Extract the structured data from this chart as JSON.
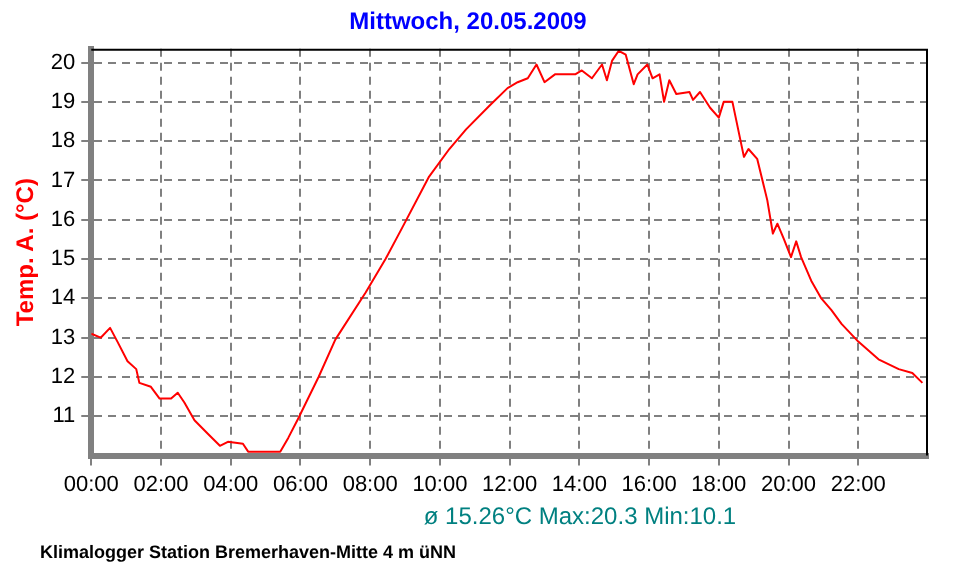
{
  "chart_data": {
    "type": "line",
    "title": "Mittwoch, 20.05.2009",
    "ylabel": "Temp. A. (°C)",
    "annotations": [
      "ø 15.26°C  Max:20.3  Min:10.1",
      "Klimalogger Station Bremerhaven-Mitte 4 m üNN"
    ],
    "xlim": [
      0,
      24
    ],
    "ylim": [
      10,
      20.35
    ],
    "xticks": [
      {
        "value": 0,
        "label": "00:00"
      },
      {
        "value": 2,
        "label": "02:00"
      },
      {
        "value": 4,
        "label": "04:00"
      },
      {
        "value": 6,
        "label": "06:00"
      },
      {
        "value": 8,
        "label": "08:00"
      },
      {
        "value": 10,
        "label": "10:00"
      },
      {
        "value": 12,
        "label": "12:00"
      },
      {
        "value": 14,
        "label": "14:00"
      },
      {
        "value": 16,
        "label": "16:00"
      },
      {
        "value": 18,
        "label": "18:00"
      },
      {
        "value": 20,
        "label": "20:00"
      },
      {
        "value": 22,
        "label": "22:00"
      }
    ],
    "yticks": [
      11,
      12,
      13,
      14,
      15,
      16,
      17,
      18,
      19,
      20
    ],
    "grid": true,
    "legend": false,
    "marker": "none",
    "line_style": "solid",
    "series": [
      {
        "color": "#ff0000",
        "x": [
          0,
          0.27,
          0.54,
          0.75,
          1.04,
          1.29,
          1.38,
          1.71,
          1.96,
          2.29,
          2.48,
          2.67,
          2.96,
          3.35,
          3.69,
          3.92,
          4.35,
          4.5,
          5.42,
          5.65,
          5.94,
          6.52,
          7.0,
          7.87,
          8.44,
          8.92,
          9.69,
          10.27,
          10.75,
          11.42,
          11.94,
          12.23,
          12.52,
          12.77,
          13.0,
          13.3,
          13.88,
          14.07,
          14.36,
          14.65,
          14.79,
          14.94,
          15.13,
          15.33,
          15.56,
          15.67,
          15.95,
          16.1,
          16.3,
          16.43,
          16.58,
          16.78,
          17.16,
          17.26,
          17.46,
          17.75,
          18.0,
          18.14,
          18.39,
          18.72,
          18.85,
          19.1,
          19.39,
          19.55,
          19.68,
          19.87,
          20.07,
          20.22,
          20.36,
          20.65,
          20.94,
          21.23,
          21.52,
          22.0,
          22.58,
          23.16,
          23.55,
          23.84
        ],
        "values": [
          13.1,
          13.0,
          13.25,
          12.9,
          12.4,
          12.2,
          11.85,
          11.75,
          11.45,
          11.45,
          11.6,
          11.35,
          10.9,
          10.55,
          10.25,
          10.35,
          10.3,
          10.1,
          10.1,
          10.45,
          10.95,
          12.0,
          12.95,
          14.15,
          15.0,
          15.8,
          17.1,
          17.8,
          18.3,
          18.9,
          19.35,
          19.5,
          19.6,
          19.95,
          19.5,
          19.7,
          19.7,
          19.8,
          19.6,
          19.95,
          19.55,
          20.05,
          20.3,
          20.2,
          19.45,
          19.7,
          19.95,
          19.6,
          19.7,
          19.0,
          19.55,
          19.2,
          19.25,
          19.05,
          19.25,
          18.85,
          18.6,
          19.0,
          19.0,
          17.6,
          17.8,
          17.55,
          16.5,
          15.65,
          15.9,
          15.5,
          15.05,
          15.45,
          15.05,
          14.45,
          14.0,
          13.7,
          13.35,
          12.9,
          12.45,
          12.2,
          12.1,
          11.85
        ]
      }
    ]
  }
}
